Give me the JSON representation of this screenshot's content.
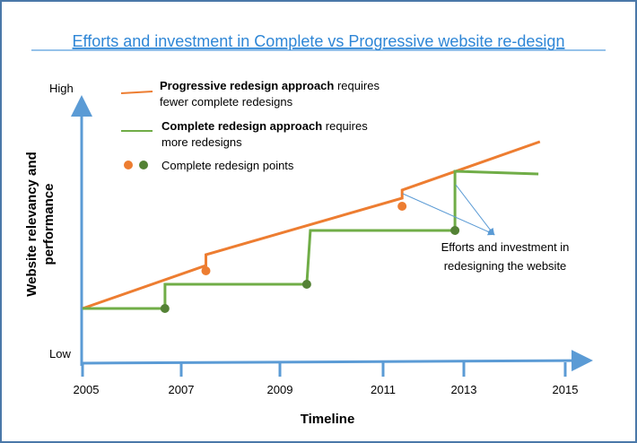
{
  "chart_data": {
    "type": "line",
    "title": "Efforts and investment in Complete vs Progressive website re-design",
    "xlabel": "Timeline",
    "ylabel": "Website relevancy and performance",
    "ylabel_lines": [
      "Website relevancy and",
      "performance"
    ],
    "y_tick_labels": {
      "high": "High",
      "low": "Low"
    },
    "x_ticks": [
      2005,
      2007,
      2009,
      2011,
      2013,
      2015
    ],
    "ylim": [
      0,
      100
    ],
    "grid": false,
    "legend_placement": "top-left",
    "legend": [
      {
        "bold": "Progressive redesign approach",
        "rest": " requires",
        "line2": "fewer complete redesigns",
        "color": "#ed7d31"
      },
      {
        "bold": "Complete redesign approach",
        "rest": " requires",
        "line2": "more redesigns",
        "color": "#70ad47"
      },
      {
        "text": "Complete redesign points",
        "colors": [
          "#ed7d31",
          "#548235"
        ]
      }
    ],
    "series": [
      {
        "name": "Progressive redesign approach",
        "color": "#ed7d31",
        "x": [
          2005,
          2007.5,
          2007.5,
          2011.47,
          2011.47,
          2014.5
        ],
        "y": [
          20,
          36,
          40,
          61,
          64,
          82
        ],
        "redesign_points": [
          {
            "x": 2007.5,
            "y": 34
          },
          {
            "x": 2011.47,
            "y": 58
          }
        ]
      },
      {
        "name": "Complete redesign approach",
        "color": "#70ad47",
        "x": [
          2005,
          2006.67,
          2006.67,
          2009.52,
          2009.59,
          2012.78,
          2012.78,
          2014.47
        ],
        "y": [
          20,
          20,
          29,
          29,
          49,
          49,
          71,
          70
        ],
        "redesign_points": [
          {
            "x": 2006.67,
            "y": 20
          },
          {
            "x": 2009.52,
            "y": 29
          },
          {
            "x": 2012.78,
            "y": 49
          }
        ],
        "point_color": "#548235"
      }
    ],
    "annotation": {
      "lines": [
        "Efforts and investment in",
        "redesigning the website"
      ],
      "color": "#5b9bd5"
    },
    "axis_color": "#5b9bd5"
  }
}
